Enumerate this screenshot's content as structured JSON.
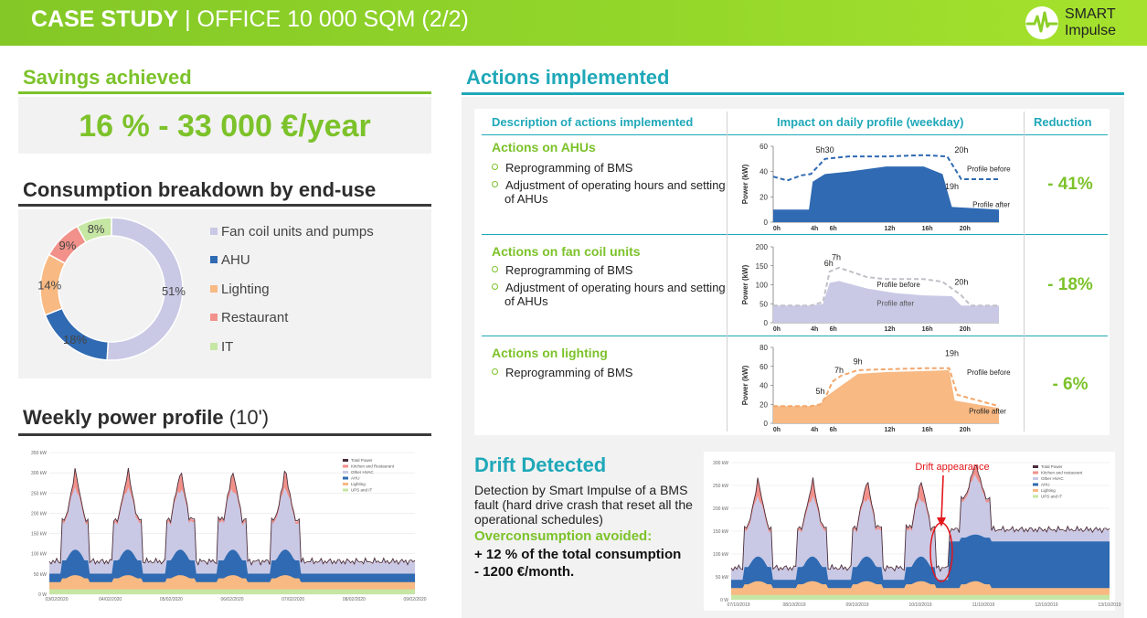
{
  "header": {
    "title_bold": "CASE STUDY",
    "title_rest": " | OFFICE 10 000 SQM (2/2)",
    "logo_line1": "SMART",
    "logo_line2": "Impulse"
  },
  "savings": {
    "title": "Savings achieved",
    "value": "16 % - 33 000 €/year"
  },
  "breakdown": {
    "title": "Consumption breakdown by end-use",
    "chart_data": {
      "type": "pie",
      "categories": [
        "Fan coil units and pumps",
        "AHU",
        "Lighting",
        "Restaurant",
        "IT"
      ],
      "values": [
        51,
        18,
        14,
        9,
        8
      ],
      "value_labels": [
        "51%",
        "18%",
        "14%",
        "9%",
        "8%"
      ],
      "colors": [
        "#c9c9e6",
        "#2f6ab2",
        "#f8b983",
        "#f1918a",
        "#c6e6a3"
      ]
    }
  },
  "weekly": {
    "title": "Weekly power profile",
    "suffix": " (10')",
    "y_ticks": [
      "350 kW",
      "300 kW",
      "250 kW",
      "200 kW",
      "150 kW",
      "100 kW",
      "50 kW",
      "0 W"
    ],
    "x_ticks": [
      "03/02/2020",
      "04/02/2020",
      "05/02/2020",
      "06/02/2020",
      "07/02/2020",
      "08/02/2020",
      "09/02/2020"
    ],
    "legend": [
      "Total Power",
      "Kitchen and Restaurant",
      "Other HVAC",
      "AHU",
      "Lighting",
      "UPS and IT"
    ]
  },
  "actions": {
    "title": "Actions implemented",
    "col1": "Description of actions implemented",
    "col2": "Impact on daily profile (weekday)",
    "col3": "Reduction",
    "rows": [
      {
        "title": "Actions on AHUs",
        "bullets": [
          "Reprogramming of BMS",
          "Adjustment of operating hours and setting of AHUs"
        ],
        "reduction": "- 41%",
        "chart": {
          "ylabel": "Power (kW)",
          "y_ticks": [
            "60",
            "40",
            "20",
            "0"
          ],
          "x_ticks": [
            "0h",
            "4h",
            "6h",
            "12h",
            "16h",
            "20h"
          ],
          "annotations": [
            "5h30",
            "20h",
            "19h"
          ],
          "before_label": "Profile before",
          "after_label": "Profile after"
        }
      },
      {
        "title": "Actions on fan coil units",
        "bullets": [
          "Reprogramming of BMS",
          "Adjustment of operating hours and setting of AHUs"
        ],
        "reduction": "- 18%",
        "chart": {
          "ylabel": "Power (kW)",
          "y_ticks": [
            "200",
            "150",
            "100",
            "50",
            "0"
          ],
          "x_ticks": [
            "0h",
            "4h",
            "6h",
            "12h",
            "16h",
            "20h"
          ],
          "annotations": [
            "7h",
            "6h",
            "20h"
          ],
          "before_label": "Profile before",
          "after_label": "Profile after"
        }
      },
      {
        "title": "Actions on lighting",
        "bullets": [
          "Reprogramming of BMS"
        ],
        "reduction": "- 6%",
        "chart": {
          "ylabel": "Power (kW)",
          "y_ticks": [
            "80",
            "60",
            "40",
            "20",
            "0"
          ],
          "x_ticks": [
            "0h",
            "4h",
            "6h",
            "12h",
            "16h",
            "20h"
          ],
          "annotations": [
            "19h",
            "9h",
            "7h",
            "5h"
          ],
          "before_label": "Profile before",
          "after_label": "Profile after"
        }
      }
    ]
  },
  "drift": {
    "title": "Drift Detected",
    "description": "Detection by Smart Impulse of a BMS fault (hard drive crash that reset all the operational schedules)",
    "overconsumption": "Overconsumption avoided:",
    "result1": "+ 12 % of the total consumption",
    "result2": "- 1200 €/month.",
    "annotation": "Drift appearance",
    "y_ticks": [
      "300 kW",
      "250 kW",
      "200 kW",
      "150 kW",
      "100 kW",
      "50 kW",
      "0 W"
    ],
    "x_ticks": [
      "07/10/2019",
      "08/10/2019",
      "09/10/2019",
      "10/10/2019",
      "11/10/2019",
      "12/10/2019",
      "13/10/2019"
    ],
    "legend": [
      "Total Power",
      "Kitchen and restaurant",
      "Other HVAC",
      "AHU",
      "Lighting",
      "UPS and IT"
    ]
  },
  "colors": {
    "green": "#7cc22a",
    "teal": "#1fa8b8",
    "ahu_blue": "#2f6ab2",
    "fan_coil": "#c9c9e6",
    "lighting": "#f8b983",
    "restaurant": "#f1918a",
    "it": "#c6e6a3"
  }
}
